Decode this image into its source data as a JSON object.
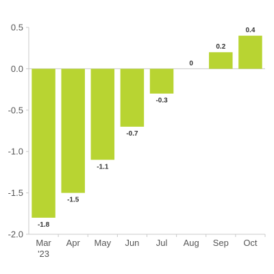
{
  "chart_data": {
    "type": "bar",
    "title": "",
    "xlabel": "",
    "ylabel": "",
    "categories": [
      "Mar\n'23",
      "Apr",
      "May",
      "Jun",
      "Jul",
      "Aug",
      "Sep",
      "Oct"
    ],
    "values": [
      -1.8,
      -1.5,
      -1.1,
      -0.7,
      -0.3,
      0,
      0.2,
      0.4
    ],
    "data_labels": [
      "-1.8",
      "-1.5",
      "-1.1",
      "-0.7",
      "-0.3",
      "0",
      "0.2",
      "0.4"
    ],
    "ylim": [
      -2.0,
      0.5
    ],
    "yticks": [
      0.5,
      0.0,
      -0.5,
      -1.0,
      -1.5,
      -2.0
    ],
    "ytick_labels": [
      "0.5",
      "0.0",
      "-0.5",
      "-1.0",
      "-1.5",
      "-2.0"
    ],
    "grid": false,
    "legend": "none",
    "colors": {
      "bar": "#b8d432",
      "axis": "#c8c8c8",
      "zero_line": "#c8c8c8",
      "tick_text": "#555555",
      "label_text": "#333333"
    }
  }
}
